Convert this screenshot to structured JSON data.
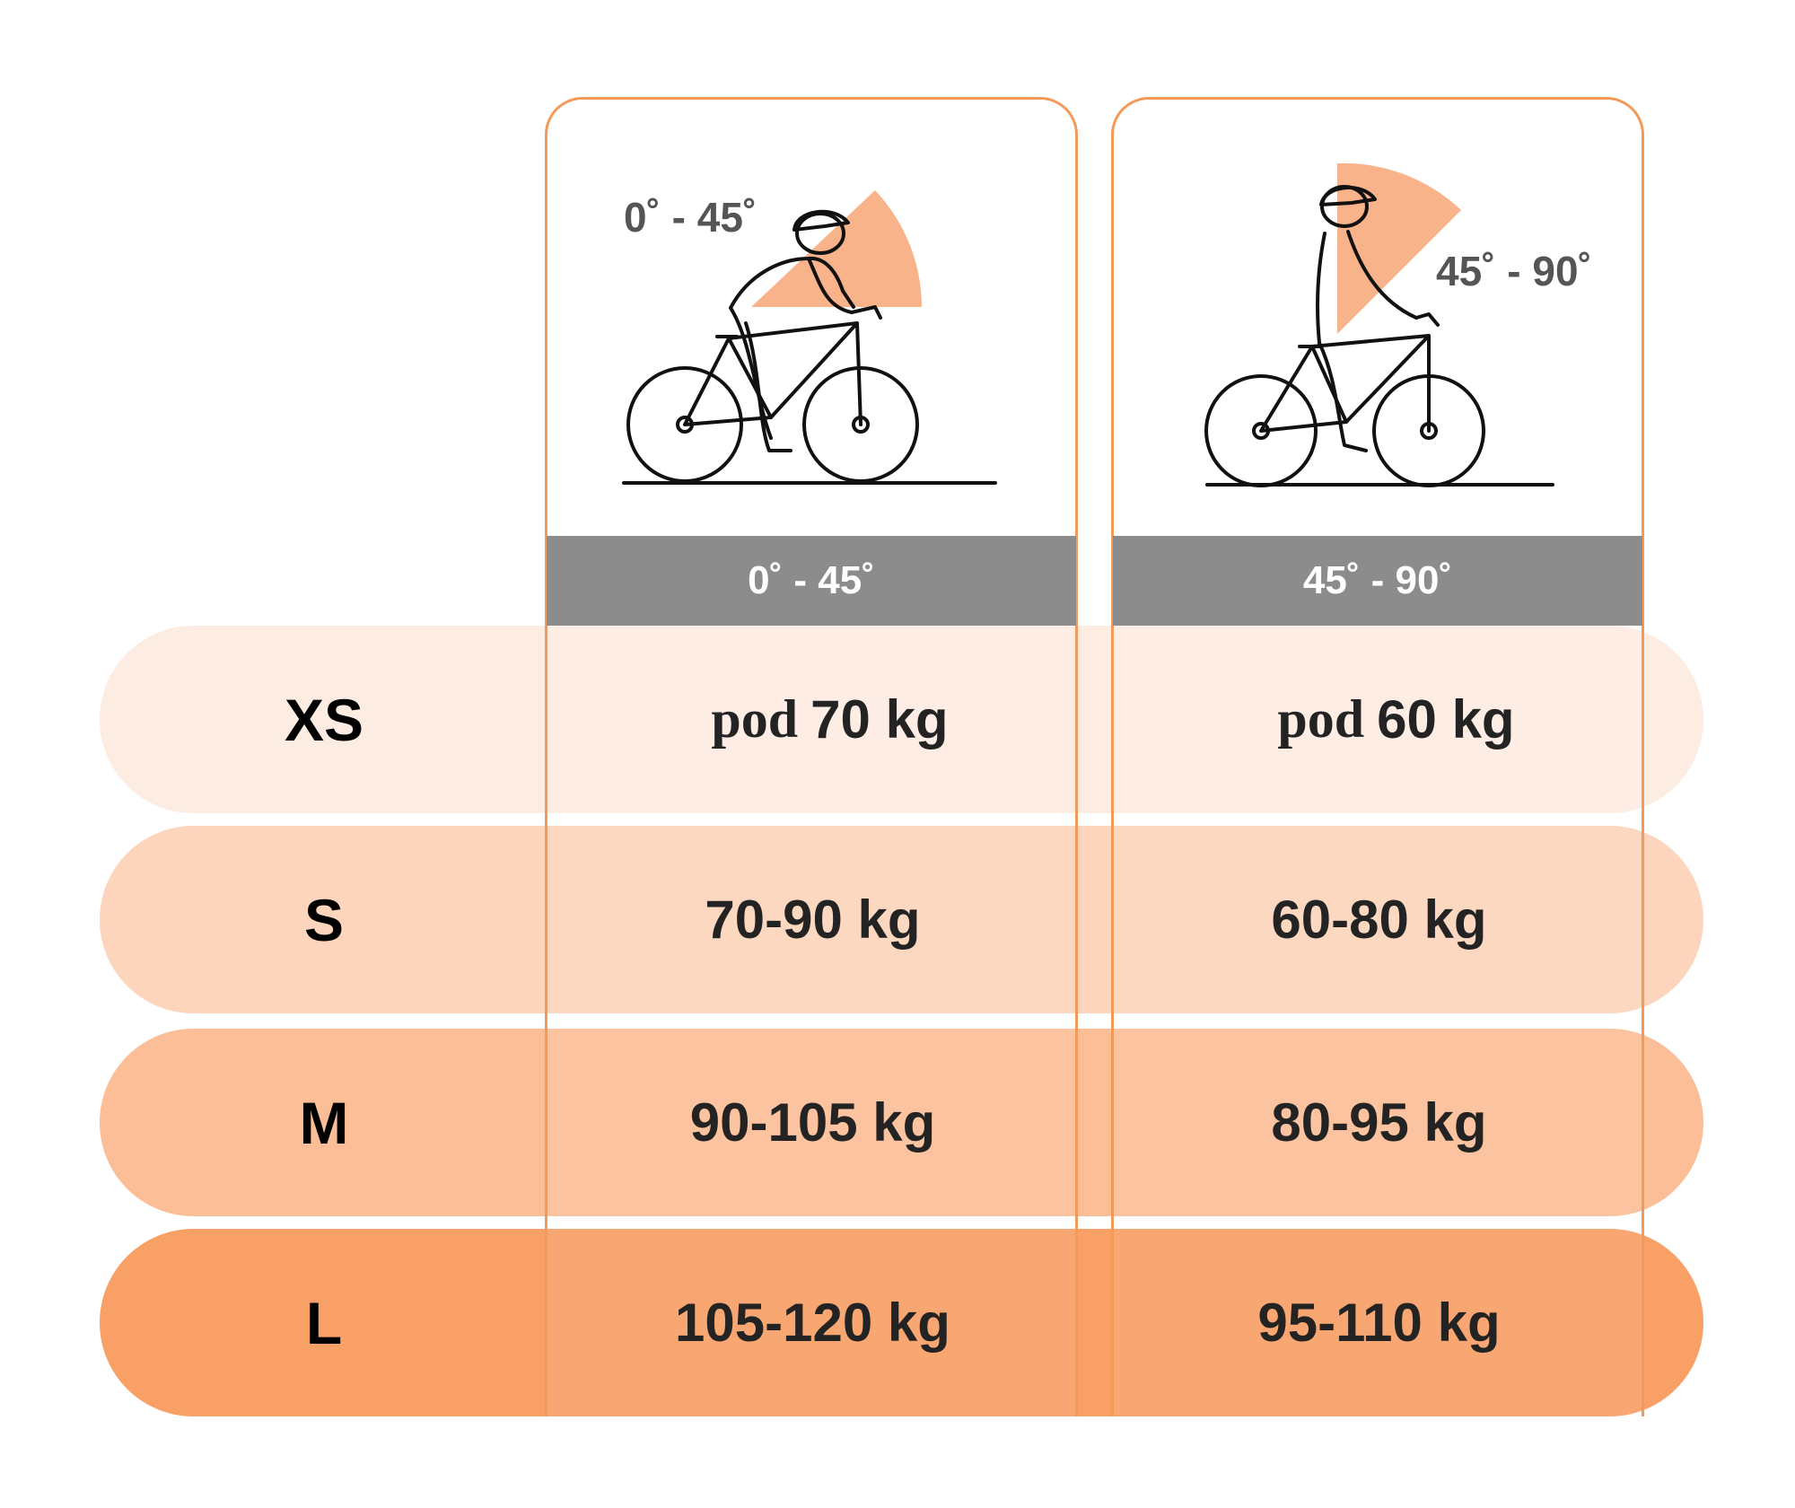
{
  "columns": [
    {
      "header": "0˚ - 45˚",
      "illustration_label": "0˚ - 45˚",
      "illustration": "cyclist-leaning-icon"
    },
    {
      "header": "45˚ - 90˚",
      "illustration_label": "45˚ - 90˚",
      "illustration": "cyclist-upright-icon"
    }
  ],
  "rows": [
    {
      "size": "XS",
      "col1_prefix": "pod",
      "col1": "70 kg",
      "col2_prefix": "pod",
      "col2": "60 kg"
    },
    {
      "size": "S",
      "col1": "70-90 kg",
      "col2": "60-80 kg"
    },
    {
      "size": "M",
      "col1": "90-105 kg",
      "col2": "80-95 kg"
    },
    {
      "size": "L",
      "col1": "105-120 kg",
      "col2": "95-110 kg"
    }
  ],
  "colors": {
    "accent": "#f39a5b",
    "header_band": "#8c8c8c",
    "row_xs": "#fdece2",
    "row_s": "#fcd5bc",
    "row_m": "#fbbe97",
    "row_l": "#f9a066"
  }
}
